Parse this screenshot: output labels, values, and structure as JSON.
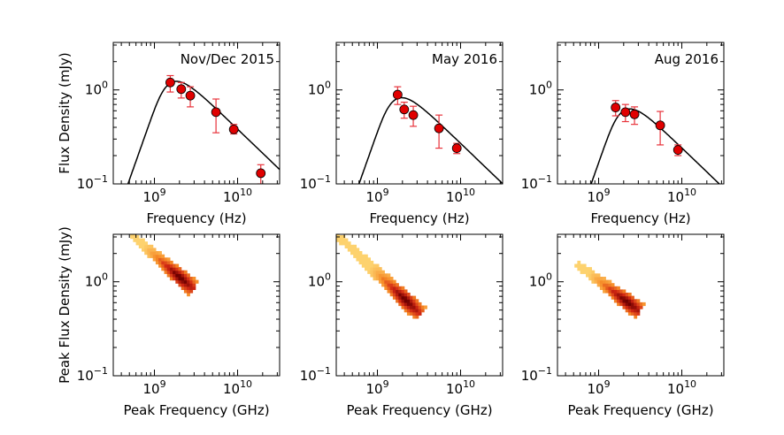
{
  "chart_data": [
    {
      "type": "scatter",
      "panel": "sed",
      "annotation": "Nov/Dec 2015",
      "xlabel": "Frequency (Hz)",
      "ylabel": "Flux Density (mJy)",
      "xscale": "log",
      "yscale": "log",
      "xlim": [
        320000000.0,
        32000000000.0
      ],
      "ylim": [
        0.1,
        3.2
      ],
      "xticks": [
        "10^9",
        "10^10"
      ],
      "yticks": [
        "10^-1",
        "10^0"
      ],
      "points": [
        {
          "x": 1550000000.0,
          "y": 1.2,
          "yerr_low": 0.95,
          "yerr_high": 1.42
        },
        {
          "x": 2100000000.0,
          "y": 1.02,
          "yerr_low": 0.82,
          "yerr_high": 1.2
        },
        {
          "x": 2700000000.0,
          "y": 0.87,
          "yerr_low": 0.66,
          "yerr_high": 1.08
        },
        {
          "x": 5500000000.0,
          "y": 0.58,
          "yerr_low": 0.35,
          "yerr_high": 0.8
        },
        {
          "x": 9000000000.0,
          "y": 0.38,
          "yerr_low": 0.34,
          "yerr_high": 0.43
        },
        {
          "x": 19000000000.0,
          "y": 0.13,
          "yerr_low": 0.1,
          "yerr_high": 0.16
        }
      ],
      "model": {
        "peak_freq": 1550000000.0,
        "peak_flux": 1.18
      }
    },
    {
      "type": "scatter",
      "panel": "sed",
      "annotation": "May 2016",
      "xlabel": "Frequency (Hz)",
      "ylabel": "",
      "xscale": "log",
      "yscale": "log",
      "xlim": [
        320000000.0,
        32000000000.0
      ],
      "ylim": [
        0.1,
        3.2
      ],
      "xticks": [
        "10^9",
        "10^10"
      ],
      "yticks": [
        "10^-1",
        "10^0"
      ],
      "points": [
        {
          "x": 1750000000.0,
          "y": 0.89,
          "yerr_low": 0.7,
          "yerr_high": 1.08
        },
        {
          "x": 2100000000.0,
          "y": 0.62,
          "yerr_low": 0.5,
          "yerr_high": 0.74
        },
        {
          "x": 2700000000.0,
          "y": 0.54,
          "yerr_low": 0.41,
          "yerr_high": 0.67
        },
        {
          "x": 5500000000.0,
          "y": 0.39,
          "yerr_low": 0.24,
          "yerr_high": 0.54
        },
        {
          "x": 9000000000.0,
          "y": 0.24,
          "yerr_low": 0.21,
          "yerr_high": 0.27
        }
      ],
      "model": {
        "peak_freq": 1650000000.0,
        "peak_flux": 0.79
      }
    },
    {
      "type": "scatter",
      "panel": "sed",
      "annotation": "Aug 2016",
      "xlabel": "Frequency (Hz)",
      "ylabel": "",
      "xscale": "log",
      "yscale": "log",
      "xlim": [
        320000000.0,
        32000000000.0
      ],
      "ylim": [
        0.1,
        3.2
      ],
      "xticks": [
        "10^9",
        "10^10"
      ],
      "yticks": [
        "10^-1",
        "10^0"
      ],
      "points": [
        {
          "x": 1600000000.0,
          "y": 0.65,
          "yerr_low": 0.53,
          "yerr_high": 0.77
        },
        {
          "x": 2100000000.0,
          "y": 0.58,
          "yerr_low": 0.46,
          "yerr_high": 0.7
        },
        {
          "x": 2700000000.0,
          "y": 0.55,
          "yerr_low": 0.43,
          "yerr_high": 0.66
        },
        {
          "x": 5500000000.0,
          "y": 0.42,
          "yerr_low": 0.26,
          "yerr_high": 0.59
        },
        {
          "x": 9000000000.0,
          "y": 0.23,
          "yerr_low": 0.2,
          "yerr_high": 0.26
        }
      ],
      "model": {
        "peak_freq": 2000000000.0,
        "peak_flux": 0.6
      }
    },
    {
      "type": "heatmap",
      "panel": "posterior",
      "xlabel": "Peak Frequency (GHz)",
      "ylabel": "Peak Flux Density (mJy)",
      "xscale": "log",
      "yscale": "log",
      "xlim": [
        320000000.0,
        32000000000.0
      ],
      "ylim": [
        0.1,
        3.2
      ],
      "xticks": [
        "10^9",
        "10^10"
      ],
      "yticks": [
        "10^-1",
        "10^0"
      ],
      "band": {
        "x_from": 520000000.0,
        "y_from": 3.2,
        "x_to": 2800000000.0,
        "y_to": 0.88,
        "x_peak": 2000000000.0,
        "y_peak": 1.1
      }
    },
    {
      "type": "heatmap",
      "panel": "posterior",
      "xlabel": "Peak Frequency (GHz)",
      "ylabel": "",
      "xscale": "log",
      "yscale": "log",
      "xlim": [
        320000000.0,
        32000000000.0
      ],
      "ylim": [
        0.1,
        3.2
      ],
      "xticks": [
        "10^9",
        "10^10"
      ],
      "yticks": [
        "10^-1",
        "10^0"
      ],
      "band": {
        "x_from": 320000000.0,
        "y_from": 3.2,
        "x_to": 3100000000.0,
        "y_to": 0.48,
        "x_peak": 2200000000.0,
        "y_peak": 0.65
      }
    },
    {
      "type": "heatmap",
      "panel": "posterior",
      "xlabel": "Peak Frequency (GHz)",
      "ylabel": "",
      "xscale": "log",
      "yscale": "log",
      "xlim": [
        320000000.0,
        32000000000.0
      ],
      "ylim": [
        0.1,
        3.2
      ],
      "xticks": [
        "10^9",
        "10^10"
      ],
      "yticks": [
        "10^-1",
        "10^0"
      ],
      "band": {
        "x_from": 550000000.0,
        "y_from": 1.55,
        "x_to": 3000000000.0,
        "y_to": 0.5,
        "x_peak": 2200000000.0,
        "y_peak": 0.62
      }
    }
  ]
}
